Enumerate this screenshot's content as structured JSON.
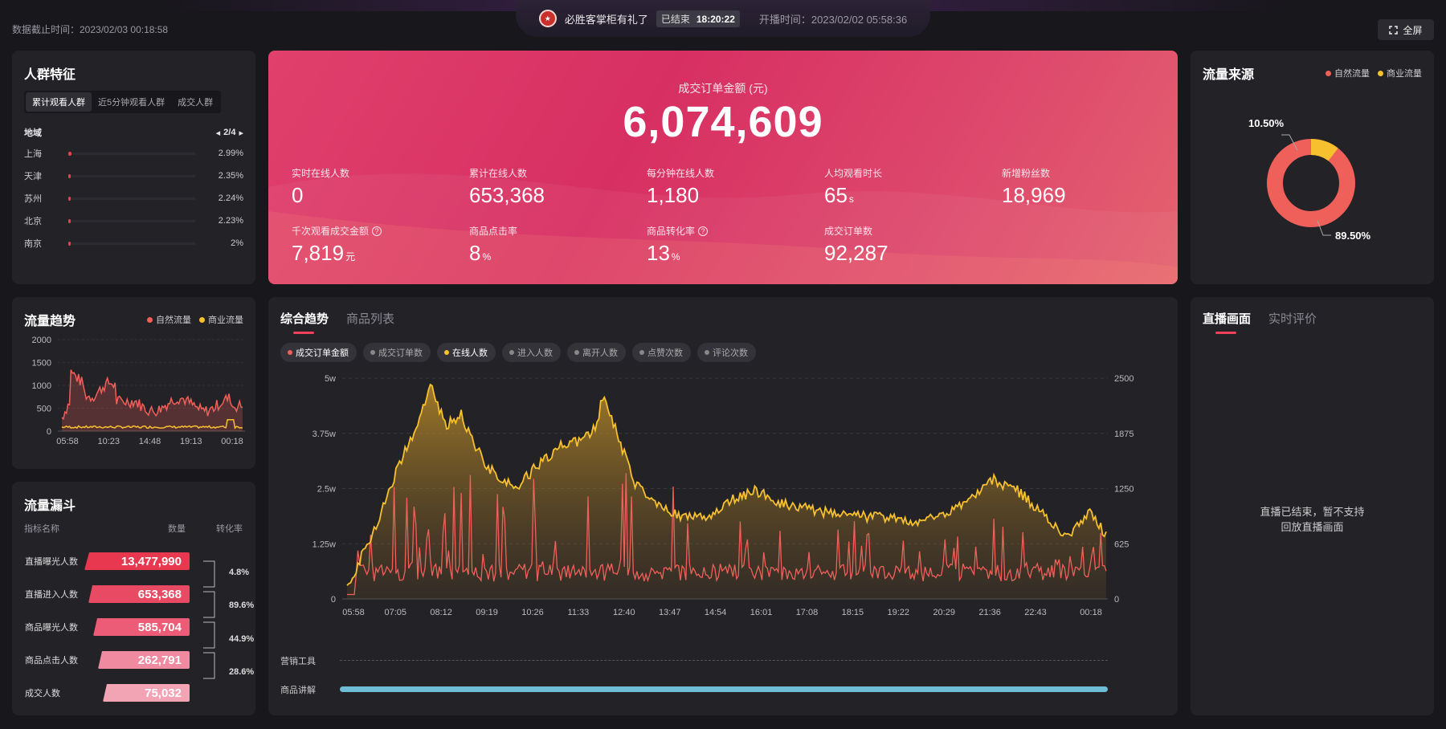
{
  "header": {
    "cutoff_time": "数据截止时间：2023/02/03 00:18:58",
    "room_name": "必胜客掌柜有礼了",
    "status": "已结束",
    "duration": "18:20:22",
    "start_time": "开播时间：2023/02/02 05:58:36",
    "fullscreen_label": "全屏"
  },
  "crowd": {
    "title": "人群特征",
    "tabs": [
      "累计观看人群",
      "近5分钟观看人群",
      "成交人群"
    ],
    "region_label": "地域",
    "pager": "2/4",
    "regions": [
      {
        "name": "上海",
        "value": "2.99%",
        "pct": 2.99
      },
      {
        "name": "天津",
        "value": "2.35%",
        "pct": 2.35
      },
      {
        "name": "苏州",
        "value": "2.24%",
        "pct": 2.24
      },
      {
        "name": "北京",
        "value": "2.23%",
        "pct": 2.23
      },
      {
        "name": "南京",
        "value": "2%",
        "pct": 2.0
      }
    ]
  },
  "main": {
    "gmv_label": "成交订单金额 (元)",
    "gmv_value": "6,074,609",
    "metrics": [
      {
        "label": "实时在线人数",
        "value": "0",
        "unit": ""
      },
      {
        "label": "累计在线人数",
        "value": "653,368",
        "unit": ""
      },
      {
        "label": "每分钟在线人数",
        "value": "1,180",
        "unit": ""
      },
      {
        "label": "人均观看时长",
        "value": "65",
        "unit": "s"
      },
      {
        "label": "新增粉丝数",
        "value": "18,969",
        "unit": ""
      },
      {
        "label": "千次观看成交金额",
        "value": "7,819",
        "unit": "元"
      },
      {
        "label": "商品点击率",
        "value": "8",
        "unit": "%"
      },
      {
        "label": "商品转化率",
        "value": "13",
        "unit": "%"
      },
      {
        "label": "成交订单数",
        "value": "92,287",
        "unit": ""
      }
    ]
  },
  "traffic_source": {
    "title": "流量来源",
    "legend": [
      "自然流量",
      "商业流量"
    ],
    "natural_label": "89.50%",
    "commercial_label": "10.50%",
    "colors": {
      "natural": "#f0605a",
      "commercial": "#f6c02e"
    }
  },
  "traffic_trend": {
    "title": "流量趋势",
    "legend": [
      "自然流量",
      "商业流量"
    ],
    "y_ticks": [
      "2000",
      "1500",
      "1000",
      "500",
      "0"
    ],
    "x_ticks": [
      "05:58",
      "10:23",
      "14:48",
      "19:13",
      "00:18"
    ]
  },
  "funnel": {
    "title": "流量漏斗",
    "col_name": "指标名称",
    "col_count": "数量",
    "col_rate": "转化率",
    "rows": [
      {
        "label": "直播曝光人数",
        "value": "13,477,990"
      },
      {
        "label": "直播进入人数",
        "value": "653,368"
      },
      {
        "label": "商品曝光人数",
        "value": "585,704"
      },
      {
        "label": "商品点击人数",
        "value": "262,791"
      },
      {
        "label": "成交人数",
        "value": "75,032"
      }
    ],
    "rates": [
      "4.8%",
      "89.6%",
      "44.9%",
      "28.6%"
    ]
  },
  "overall": {
    "tabs": [
      "综合趋势",
      "商品列表"
    ],
    "pills": [
      {
        "label": "成交订单金额",
        "color": "#f0605a",
        "active": true
      },
      {
        "label": "成交订单数",
        "color": "#888888",
        "active": false
      },
      {
        "label": "在线人数",
        "color": "#f6c02e",
        "active": true
      },
      {
        "label": "进入人数",
        "color": "#888888",
        "active": false
      },
      {
        "label": "离开人数",
        "color": "#888888",
        "active": false
      },
      {
        "label": "点赞次数",
        "color": "#888888",
        "active": false
      },
      {
        "label": "评论次数",
        "color": "#888888",
        "active": false
      }
    ],
    "y_left": [
      "5w",
      "3.75w",
      "2.5w",
      "1.25w",
      "0"
    ],
    "y_right": [
      "2500",
      "1875",
      "1250",
      "625",
      "0"
    ],
    "x_ticks": [
      "05:58",
      "07:05",
      "08:12",
      "09:19",
      "10:26",
      "11:33",
      "12:40",
      "13:47",
      "14:54",
      "16:01",
      "17:08",
      "18:15",
      "19:22",
      "20:29",
      "21:36",
      "22:43",
      "00:18"
    ],
    "marketing_label": "营销工具",
    "product_label": "商品讲解"
  },
  "live": {
    "tabs": [
      "直播画面",
      "实时评价"
    ],
    "message_line1": "直播已结束，暂不支持",
    "message_line2": "回放直播画面"
  }
}
